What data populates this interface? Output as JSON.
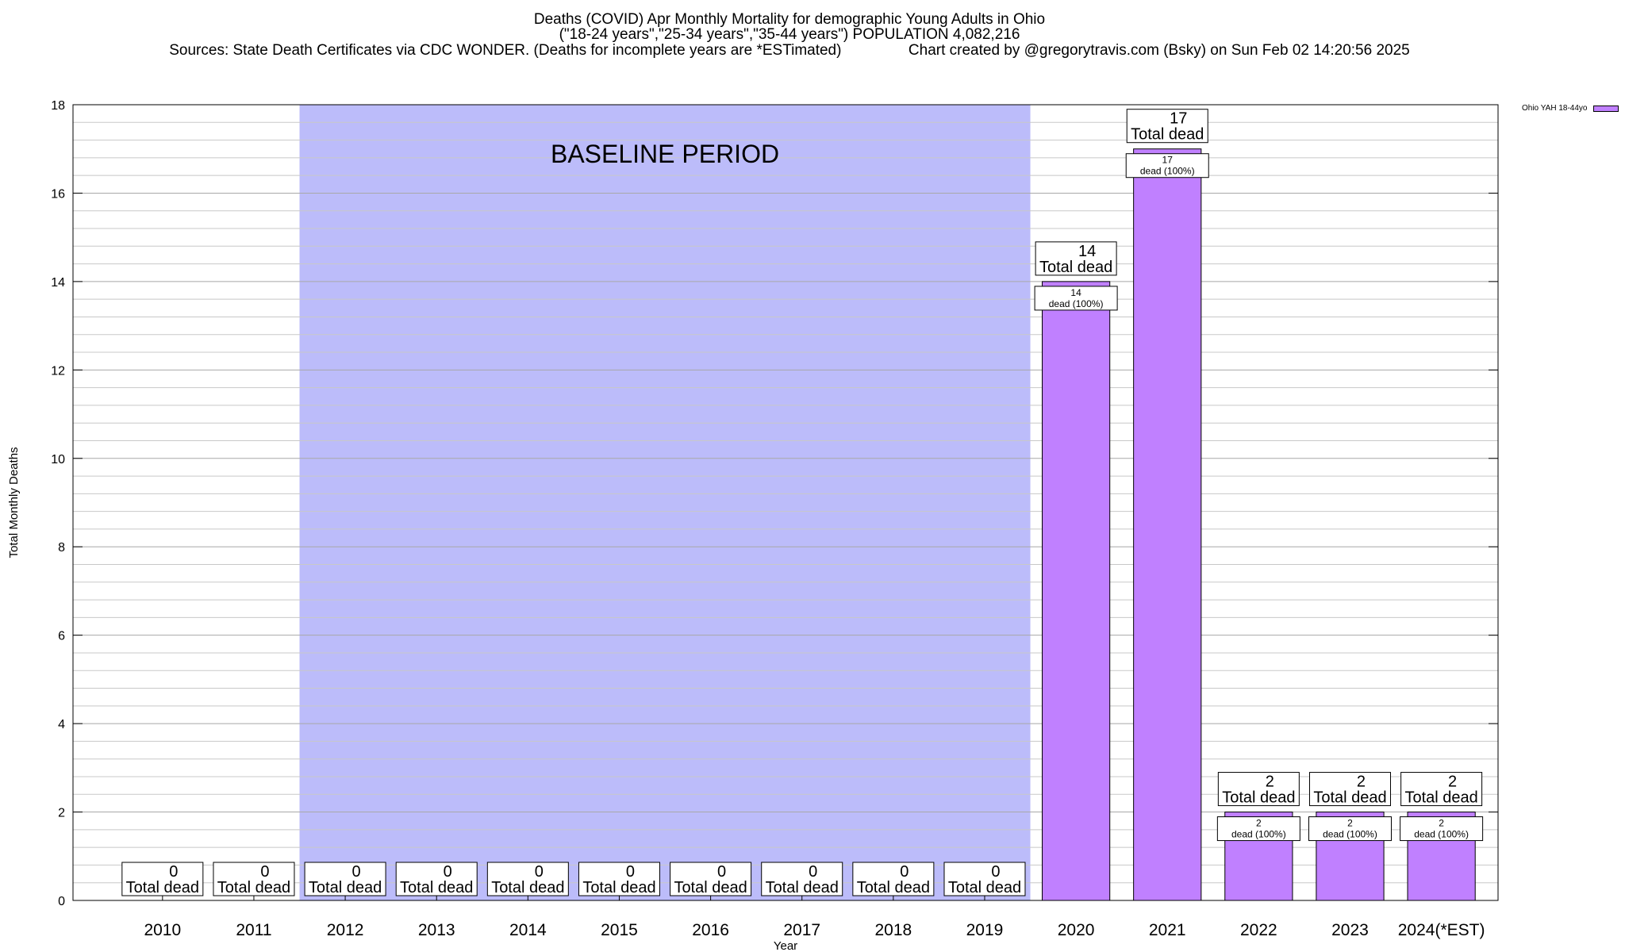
{
  "title": "Deaths (COVID) Apr Monthly Mortality for demographic Young Adults in Ohio",
  "subtitle": "(\"18-24 years\",\"25-34 years\",\"35-44 years\") POPULATION 4,082,216",
  "source_line": "Sources: State Death Certificates via CDC WONDER. (Deaths for incomplete years are *ESTimated)                Chart created by @gregorytravis.com (Bsky) on Sun Feb 02 14:20:56 2025",
  "baseline_label": "BASELINE PERIOD",
  "bar_color": "#c080ff",
  "baseline_color": "#bcbcfa",
  "chart_data": {
    "type": "bar",
    "categories": [
      "2010",
      "2011",
      "2012",
      "2013",
      "2014",
      "2015",
      "2016",
      "2017",
      "2018",
      "2019",
      "2020",
      "2021",
      "2022",
      "2023",
      "2024(*EST)"
    ],
    "series": [
      {
        "name": "Ohio YAH 18-44yo",
        "values": [
          0,
          0,
          0,
          0,
          0,
          0,
          0,
          0,
          0,
          0,
          14,
          17,
          2,
          2,
          2
        ]
      }
    ],
    "total_labels": [
      "0",
      "0",
      "0",
      "0",
      "0",
      "0",
      "0",
      "0",
      "0",
      "0",
      "14",
      "17",
      "2",
      "2",
      "2"
    ],
    "total_suffix": "Total dead",
    "inner_labels": [
      "",
      "",
      "",
      "",
      "",
      "",
      "",
      "",
      "",
      "",
      "14",
      "17",
      "2",
      "2",
      "2"
    ],
    "inner_suffix": "dead (100%)",
    "baseline_range": [
      "2012",
      "2019"
    ],
    "xlabel": "Year",
    "ylabel": "Total Monthly Deaths",
    "ylim": [
      0,
      18
    ],
    "yticks": [
      0,
      2,
      4,
      6,
      8,
      10,
      12,
      14,
      16,
      18
    ],
    "grid": true,
    "legend": "top-right"
  }
}
